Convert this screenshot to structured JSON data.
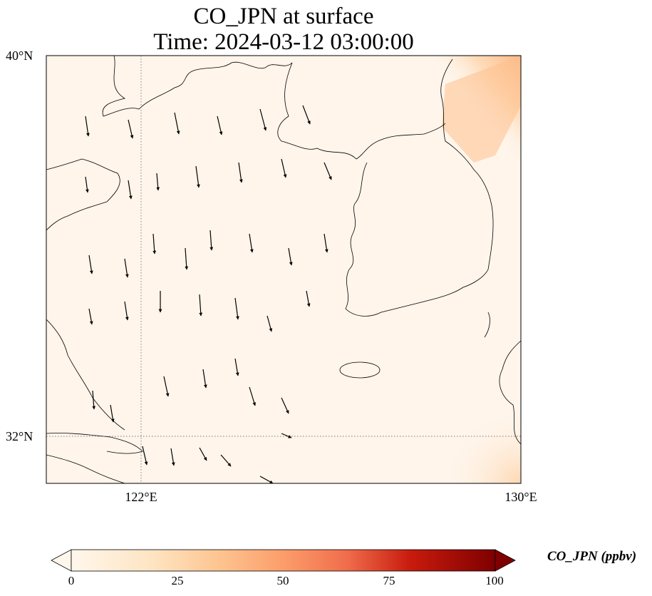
{
  "title": {
    "line1": "CO_JPN at surface",
    "line2": "Time: 2024-03-12 03:00:00"
  },
  "axes": {
    "lat_labels": [
      "40°N",
      "32°N"
    ],
    "lon_labels": [
      "122°E",
      "130°E"
    ],
    "extent": {
      "lon": [
        120,
        130
      ],
      "lat": [
        31,
        40
      ]
    },
    "gridlines": {
      "lons": [
        122,
        130
      ],
      "lats": [
        32,
        40
      ],
      "style": "dotted"
    }
  },
  "colorbar": {
    "label": "CO_JPN (ppbv)",
    "ticks": [
      "0",
      "25",
      "50",
      "75",
      "100"
    ],
    "range": [
      0,
      100
    ],
    "colormap": "OrRd",
    "extend": "both"
  },
  "field": {
    "variable": "CO_JPN",
    "units": "ppbv",
    "description_max_region": "north-east corner (~15-25 ppbv)"
  },
  "colors": {
    "background": "#fff5eb",
    "coast": "#000000",
    "plume": "#fdbb84"
  }
}
